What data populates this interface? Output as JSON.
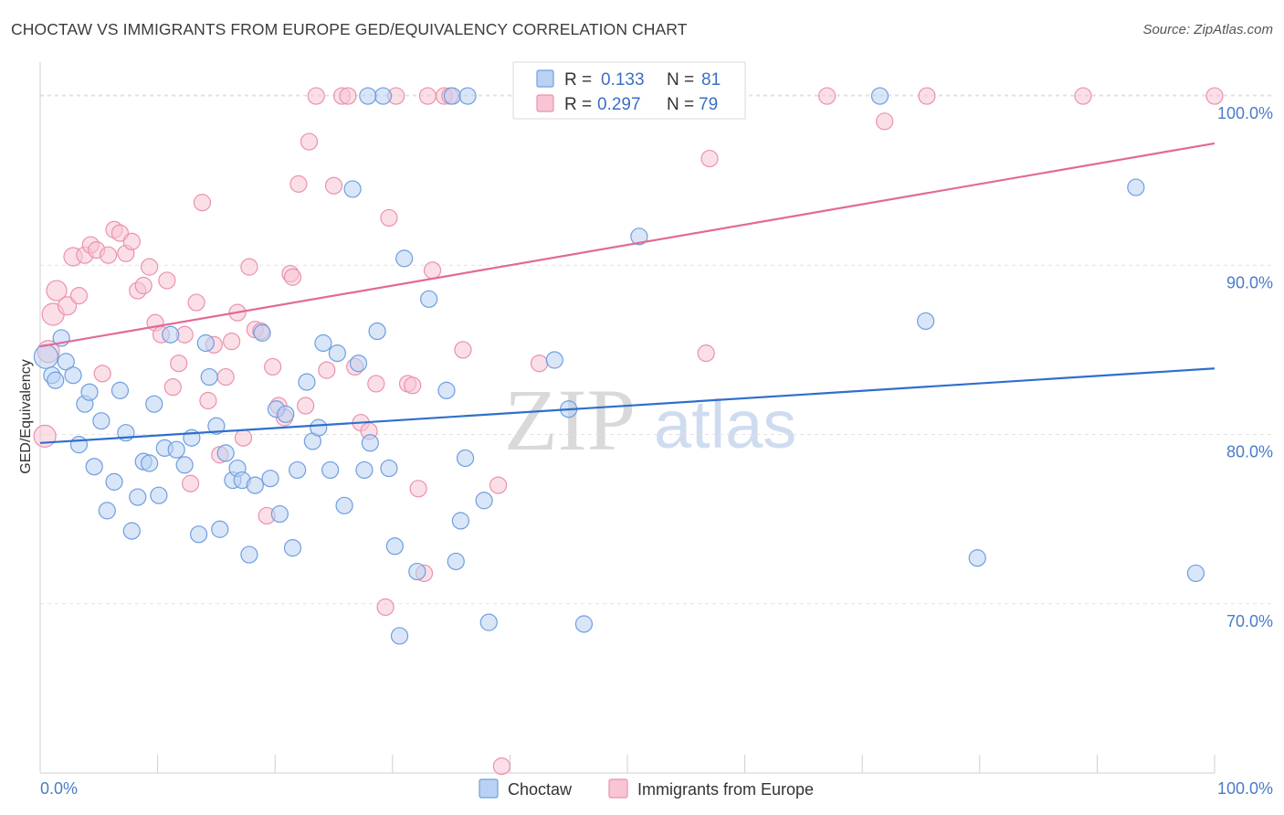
{
  "title": "CHOCTAW VS IMMIGRANTS FROM EUROPE GED/EQUIVALENCY CORRELATION CHART",
  "source": "Source: ZipAtlas.com",
  "watermark": {
    "zip": "ZIP",
    "atlas": "atlas"
  },
  "colors": {
    "choctaw_fill": "#b9d2f3",
    "choctaw_stroke": "#6e9ee0",
    "choctaw_line": "#2f6fcc",
    "europe_fill": "#f8c5d4",
    "europe_stroke": "#eb91ad",
    "europe_line": "#e26a94",
    "tick_text": "#4a7cc7",
    "grid": "#e2e2e2"
  },
  "legend": {
    "r_label": "R =",
    "n_label": "N =",
    "choctaw_r": "0.133",
    "choctaw_n": "81",
    "europe_r": "0.297",
    "europe_n": "79"
  },
  "chart_data": {
    "type": "scatter",
    "title": "CHOCTAW VS IMMIGRANTS FROM EUROPE GED/EQUIVALENCY CORRELATION CHART",
    "xlabel": "",
    "ylabel": "GED/Equivalency",
    "xlim": [
      0,
      100
    ],
    "ylim": [
      60,
      102
    ],
    "x_tick_labels": [
      "0.0%",
      "100.0%"
    ],
    "y_ticks": [
      70,
      80,
      90,
      100
    ],
    "y_tick_labels": [
      "70.0%",
      "80.0%",
      "90.0%",
      "100.0%"
    ],
    "legend_position": "top-center",
    "series": [
      {
        "name": "Choctaw",
        "r": 0.133,
        "n": 81,
        "trend": {
          "x": [
            0,
            100
          ],
          "y": [
            79.5,
            83.9
          ]
        },
        "points": [
          [
            0.5,
            84.6,
            26
          ],
          [
            1,
            83.5,
            18
          ],
          [
            1.3,
            83.2,
            18
          ],
          [
            1.8,
            85.7,
            18
          ],
          [
            2.2,
            84.3,
            18
          ],
          [
            2.8,
            83.5,
            18
          ],
          [
            3.3,
            79.4,
            18
          ],
          [
            3.8,
            81.8,
            18
          ],
          [
            4.2,
            82.5,
            18
          ],
          [
            4.6,
            78.1,
            18
          ],
          [
            5.2,
            80.8,
            18
          ],
          [
            5.7,
            75.5,
            18
          ],
          [
            6.3,
            77.2,
            18
          ],
          [
            6.8,
            82.6,
            18
          ],
          [
            7.3,
            80.1,
            18
          ],
          [
            7.8,
            74.3,
            18
          ],
          [
            8.3,
            76.3,
            18
          ],
          [
            8.8,
            78.4,
            18
          ],
          [
            9.3,
            78.3,
            18
          ],
          [
            9.7,
            81.8,
            18
          ],
          [
            10.1,
            76.4,
            18
          ],
          [
            10.6,
            79.2,
            18
          ],
          [
            11.1,
            85.9,
            18
          ],
          [
            11.6,
            79.1,
            18
          ],
          [
            12.3,
            78.2,
            18
          ],
          [
            12.9,
            79.8,
            18
          ],
          [
            13.5,
            74.1,
            18
          ],
          [
            14.1,
            85.4,
            18
          ],
          [
            14.4,
            83.4,
            18
          ],
          [
            15.0,
            80.5,
            18
          ],
          [
            15.3,
            74.4,
            18
          ],
          [
            15.8,
            78.9,
            18
          ],
          [
            16.4,
            77.3,
            18
          ],
          [
            16.8,
            78.0,
            18
          ],
          [
            17.2,
            77.3,
            18
          ],
          [
            17.8,
            72.9,
            18
          ],
          [
            18.3,
            77.0,
            18
          ],
          [
            18.9,
            86.0,
            18
          ],
          [
            19.6,
            77.4,
            18
          ],
          [
            20.1,
            81.5,
            18
          ],
          [
            20.4,
            75.3,
            18
          ],
          [
            20.9,
            81.2,
            18
          ],
          [
            21.5,
            73.3,
            18
          ],
          [
            21.9,
            77.9,
            18
          ],
          [
            22.7,
            83.1,
            18
          ],
          [
            23.2,
            79.6,
            18
          ],
          [
            23.7,
            80.4,
            18
          ],
          [
            24.1,
            85.4,
            18
          ],
          [
            24.7,
            77.9,
            18
          ],
          [
            25.3,
            84.8,
            18
          ],
          [
            25.9,
            75.8,
            18
          ],
          [
            26.6,
            94.5,
            18
          ],
          [
            27.1,
            84.2,
            18
          ],
          [
            27.6,
            77.9,
            18
          ],
          [
            28.1,
            79.5,
            18
          ],
          [
            28.7,
            86.1,
            18
          ],
          [
            29.2,
            100,
            18
          ],
          [
            29.7,
            78.0,
            18
          ],
          [
            30.2,
            73.4,
            18
          ],
          [
            30.6,
            68.1,
            18
          ],
          [
            31.0,
            90.4,
            18
          ],
          [
            32.1,
            71.9,
            18
          ],
          [
            33.1,
            88.0,
            18
          ],
          [
            34.6,
            82.6,
            18
          ],
          [
            35.1,
            100,
            18
          ],
          [
            35.4,
            72.5,
            18
          ],
          [
            35.8,
            74.9,
            18
          ],
          [
            36.2,
            78.6,
            18
          ],
          [
            37.8,
            76.1,
            18
          ],
          [
            38.2,
            68.9,
            18
          ],
          [
            43.8,
            84.4,
            18
          ],
          [
            45.0,
            81.5,
            18
          ],
          [
            46.3,
            68.8,
            18
          ],
          [
            51.0,
            91.7,
            18
          ],
          [
            71.5,
            100,
            18
          ],
          [
            75.4,
            86.7,
            18
          ],
          [
            79.8,
            72.7,
            18
          ],
          [
            93.3,
            94.6,
            18
          ],
          [
            98.4,
            71.8,
            18
          ],
          [
            36.4,
            100,
            18
          ],
          [
            27.9,
            100,
            18
          ]
        ]
      },
      {
        "name": "Immigrants from Europe",
        "r": 0.297,
        "n": 79,
        "trend": {
          "x": [
            0,
            100
          ],
          "y": [
            85.2,
            97.2
          ]
        },
        "points": [
          [
            0.4,
            79.9,
            24
          ],
          [
            0.7,
            84.9,
            24
          ],
          [
            1.1,
            87.1,
            24
          ],
          [
            1.4,
            88.5,
            22
          ],
          [
            2.3,
            87.6,
            20
          ],
          [
            2.8,
            90.5,
            20
          ],
          [
            3.3,
            88.2,
            18
          ],
          [
            3.8,
            90.6,
            18
          ],
          [
            4.3,
            91.2,
            18
          ],
          [
            4.8,
            90.9,
            18
          ],
          [
            5.3,
            83.6,
            18
          ],
          [
            5.8,
            90.6,
            18
          ],
          [
            6.3,
            92.1,
            18
          ],
          [
            6.8,
            91.9,
            18
          ],
          [
            7.3,
            90.7,
            18
          ],
          [
            7.8,
            91.4,
            18
          ],
          [
            8.3,
            88.5,
            18
          ],
          [
            8.8,
            88.8,
            18
          ],
          [
            9.3,
            89.9,
            18
          ],
          [
            9.8,
            86.6,
            18
          ],
          [
            10.3,
            85.9,
            18
          ],
          [
            10.8,
            89.1,
            18
          ],
          [
            11.3,
            82.8,
            18
          ],
          [
            11.8,
            84.2,
            18
          ],
          [
            12.3,
            85.9,
            18
          ],
          [
            12.8,
            77.1,
            18
          ],
          [
            13.3,
            87.8,
            18
          ],
          [
            13.8,
            93.7,
            18
          ],
          [
            14.3,
            82.0,
            18
          ],
          [
            14.8,
            85.3,
            18
          ],
          [
            15.3,
            78.8,
            18
          ],
          [
            15.8,
            83.4,
            18
          ],
          [
            16.3,
            85.5,
            18
          ],
          [
            16.8,
            87.2,
            18
          ],
          [
            17.3,
            79.8,
            18
          ],
          [
            17.8,
            89.9,
            18
          ],
          [
            18.3,
            86.2,
            18
          ],
          [
            18.8,
            86.1,
            18
          ],
          [
            19.3,
            75.2,
            18
          ],
          [
            19.8,
            84.0,
            18
          ],
          [
            20.3,
            81.7,
            18
          ],
          [
            20.8,
            81.0,
            18
          ],
          [
            21.3,
            89.5,
            18
          ],
          [
            21.5,
            89.3,
            18
          ],
          [
            22.0,
            94.8,
            18
          ],
          [
            22.6,
            81.7,
            18
          ],
          [
            22.9,
            97.3,
            18
          ],
          [
            23.5,
            100,
            18
          ],
          [
            24.4,
            83.8,
            18
          ],
          [
            25.0,
            94.7,
            18
          ],
          [
            25.7,
            100,
            18
          ],
          [
            26.2,
            100,
            18
          ],
          [
            26.8,
            84.0,
            18
          ],
          [
            27.3,
            80.7,
            18
          ],
          [
            28.0,
            80.2,
            18
          ],
          [
            28.6,
            83.0,
            18
          ],
          [
            29.4,
            69.8,
            18
          ],
          [
            29.7,
            92.8,
            18
          ],
          [
            30.3,
            100,
            18
          ],
          [
            31.3,
            83.0,
            18
          ],
          [
            31.7,
            82.9,
            18
          ],
          [
            32.2,
            76.8,
            18
          ],
          [
            32.7,
            71.8,
            18
          ],
          [
            33.0,
            100,
            18
          ],
          [
            33.4,
            89.7,
            18
          ],
          [
            34.4,
            100,
            18
          ],
          [
            34.9,
            100,
            18
          ],
          [
            36.0,
            85.0,
            18
          ],
          [
            39.0,
            77.0,
            18
          ],
          [
            39.3,
            60.4,
            18
          ],
          [
            42.5,
            84.2,
            18
          ],
          [
            47.5,
            100,
            18
          ],
          [
            56.7,
            84.8,
            18
          ],
          [
            57.0,
            96.3,
            18
          ],
          [
            67.0,
            100,
            18
          ],
          [
            71.9,
            98.5,
            18
          ],
          [
            75.5,
            100,
            18
          ],
          [
            88.8,
            100,
            18
          ],
          [
            100,
            100,
            18
          ]
        ]
      }
    ]
  }
}
